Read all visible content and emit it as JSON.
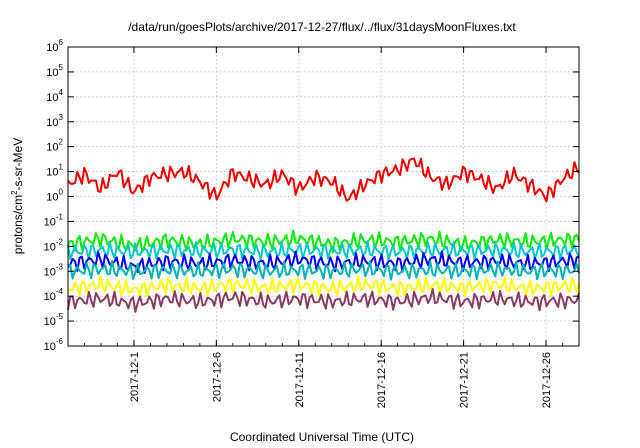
{
  "chart_data": {
    "type": "line",
    "title": "/data/run/goesPlots/archive/2017-12-27/flux/../flux/31daysMoonFluxes.txt",
    "xlabel": "Coordinated Universal Time (UTC)",
    "ylabel": {
      "main": "protons/cm",
      "sup": "2",
      "rest": "-s-sr-MeV"
    },
    "xlim": [
      "2017-11-27",
      "2017-12-28"
    ],
    "ylim": [
      1e-06,
      1000000.0
    ],
    "yscale": "log",
    "grid": true,
    "x_ticks": [
      "2017-12-1",
      "2017-12-6",
      "2017-12-11",
      "2017-12-16",
      "2017-12-21",
      "2017-12-26"
    ],
    "y_ticks": [
      {
        "base": "10",
        "exp": "-6"
      },
      {
        "base": "10",
        "exp": "-5"
      },
      {
        "base": "10",
        "exp": "-4"
      },
      {
        "base": "10",
        "exp": "-3"
      },
      {
        "base": "10",
        "exp": "-2"
      },
      {
        "base": "10",
        "exp": "-1"
      },
      {
        "base": "10",
        "exp": "0"
      },
      {
        "base": "10",
        "exp": "1"
      },
      {
        "base": "10",
        "exp": "2"
      },
      {
        "base": "10",
        "exp": "3"
      },
      {
        "base": "10",
        "exp": "4"
      },
      {
        "base": "10",
        "exp": "5"
      },
      {
        "base": "10",
        "exp": "6"
      }
    ],
    "series": [
      {
        "color": "#00ee00",
        "x": [
          "2017-11-27",
          "2017-11-29",
          "2017-12-1",
          "2017-12-3",
          "2017-12-5",
          "2017-12-7",
          "2017-12-9",
          "2017-12-11",
          "2017-12-13",
          "2017-12-15",
          "2017-12-17",
          "2017-12-19",
          "2017-12-21",
          "2017-12-23",
          "2017-12-25",
          "2017-12-28"
        ],
        "y": [
          0.012,
          0.02,
          0.01,
          0.018,
          0.012,
          0.02,
          0.015,
          0.02,
          0.012,
          0.018,
          0.015,
          0.02,
          0.012,
          0.018,
          0.015,
          0.02
        ]
      },
      {
        "color": "#00c8c8",
        "x": [
          "2017-11-27",
          "2017-11-29",
          "2017-12-1",
          "2017-12-3",
          "2017-12-5",
          "2017-12-7",
          "2017-12-9",
          "2017-12-11",
          "2017-12-13",
          "2017-12-15",
          "2017-12-17",
          "2017-12-19",
          "2017-12-21",
          "2017-12-23",
          "2017-12-25",
          "2017-12-28"
        ],
        "y": [
          0.006,
          0.007,
          0.006,
          0.007,
          0.0065,
          0.007,
          0.006,
          0.007,
          0.0065,
          0.007,
          0.006,
          0.007,
          0.0065,
          0.007,
          0.006,
          0.007
        ]
      },
      {
        "color": "#0000ee",
        "x": [
          "2017-11-27",
          "2017-11-29",
          "2017-12-1",
          "2017-12-3",
          "2017-12-5",
          "2017-12-7",
          "2017-12-9",
          "2017-12-11",
          "2017-12-13",
          "2017-12-15",
          "2017-12-17",
          "2017-12-19",
          "2017-12-21",
          "2017-12-23",
          "2017-12-25",
          "2017-12-28"
        ],
        "y": [
          0.002,
          0.003,
          0.0015,
          0.0025,
          0.002,
          0.0028,
          0.002,
          0.003,
          0.002,
          0.0025,
          0.002,
          0.003,
          0.0022,
          0.0025,
          0.002,
          0.0028
        ]
      },
      {
        "color": "#00b4b4",
        "x": [
          "2017-11-27",
          "2017-11-29",
          "2017-12-1",
          "2017-12-3",
          "2017-12-5",
          "2017-12-7",
          "2017-12-9",
          "2017-12-11",
          "2017-12-13",
          "2017-12-15",
          "2017-12-17",
          "2017-12-19",
          "2017-12-21",
          "2017-12-23",
          "2017-12-25",
          "2017-12-28"
        ],
        "y": [
          0.001,
          0.0012,
          0.001,
          0.0011,
          0.001,
          0.0012,
          0.001,
          0.0011,
          0.001,
          0.0012,
          0.001,
          0.0011,
          0.001,
          0.0012,
          0.001,
          0.0011
        ]
      },
      {
        "color": "#ffff00",
        "x": [
          "2017-11-27",
          "2017-11-29",
          "2017-12-1",
          "2017-12-3",
          "2017-12-5",
          "2017-12-7",
          "2017-12-9",
          "2017-12-11",
          "2017-12-13",
          "2017-12-15",
          "2017-12-17",
          "2017-12-19",
          "2017-12-21",
          "2017-12-23",
          "2017-12-25",
          "2017-12-28"
        ],
        "y": [
          0.0002,
          0.0003,
          0.00018,
          0.00028,
          0.0002,
          0.0003,
          0.00022,
          0.00028,
          0.0002,
          0.0003,
          0.0002,
          0.00028,
          0.00022,
          0.0003,
          0.0002,
          0.00028
        ]
      },
      {
        "color": "#8b3a62",
        "x": [
          "2017-11-27",
          "2017-11-29",
          "2017-12-1",
          "2017-12-3",
          "2017-12-5",
          "2017-12-7",
          "2017-12-9",
          "2017-12-11",
          "2017-12-13",
          "2017-12-15",
          "2017-12-17",
          "2017-12-19",
          "2017-12-21",
          "2017-12-23",
          "2017-12-25",
          "2017-12-28"
        ],
        "y": [
          6e-05,
          8e-05,
          5e-05,
          8e-05,
          6e-05,
          9e-05,
          6e-05,
          8e-05,
          6e-05,
          8e-05,
          6e-05,
          9e-05,
          6e-05,
          8e-05,
          6e-05,
          7e-05
        ]
      },
      {
        "color": "#ee0000",
        "x": [
          "2017-11-27",
          "2017-11-28",
          "2017-11-29",
          "2017-11-30",
          "2017-12-1",
          "2017-12-2",
          "2017-12-3",
          "2017-12-4",
          "2017-12-5",
          "2017-12-6",
          "2017-12-7",
          "2017-12-8",
          "2017-12-9",
          "2017-12-10",
          "2017-12-11",
          "2017-12-12",
          "2017-12-13",
          "2017-12-14",
          "2017-12-15",
          "2017-12-16",
          "2017-12-17",
          "2017-12-18",
          "2017-12-19",
          "2017-12-20",
          "2017-12-21",
          "2017-12-22",
          "2017-12-23",
          "2017-12-24",
          "2017-12-25",
          "2017-12-26",
          "2017-12-27",
          "2017-12-28"
        ],
        "y": [
          3,
          8,
          2,
          10,
          1.5,
          6,
          8,
          10,
          4,
          1,
          9,
          5,
          3,
          8,
          2,
          6,
          4,
          0.8,
          3,
          8,
          12,
          30,
          6,
          3,
          10,
          5,
          2,
          8,
          3,
          1,
          5,
          15
        ]
      }
    ]
  }
}
